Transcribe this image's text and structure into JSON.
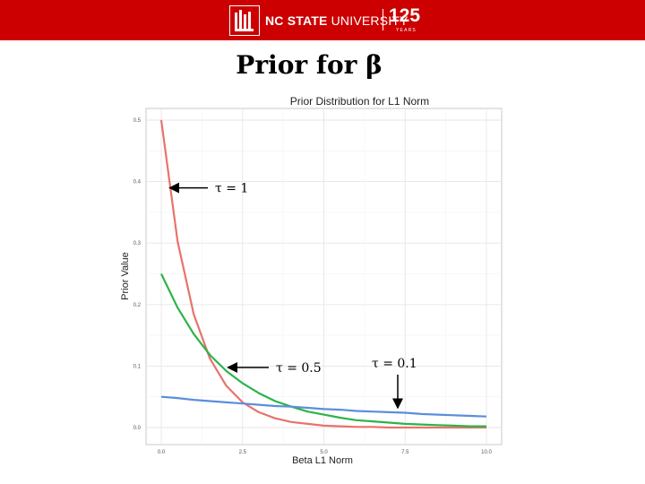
{
  "header": {
    "logo_name_bold": "NC STATE",
    "logo_name_regular": " UNIVERSITY",
    "logo_number": "125",
    "logo_years": "YEARS",
    "banner_color": "#cc0000"
  },
  "slide": {
    "title": "Prior for β"
  },
  "chart_data": {
    "type": "line",
    "title": "Prior Distribution for L1 Norm",
    "xlabel": "Beta L1 Norm",
    "ylabel": "Prior Value",
    "xlim": [
      0,
      10
    ],
    "ylim": [
      0,
      0.5
    ],
    "x_ticks": [
      "0.0",
      "2.5",
      "5.0",
      "7.5",
      "10.0"
    ],
    "y_ticks": [
      "0.0",
      "0.1",
      "0.2",
      "0.3",
      "0.4",
      "0.5"
    ],
    "grid": true,
    "x": [
      0,
      0.5,
      1,
      1.5,
      2,
      2.5,
      3,
      3.5,
      4,
      4.5,
      5,
      5.5,
      6,
      6.5,
      7,
      7.5,
      8,
      8.5,
      9,
      9.5,
      10
    ],
    "series": [
      {
        "color": "#e8736b",
        "values": [
          0.5,
          0.303,
          0.184,
          0.112,
          0.068,
          0.041,
          0.025,
          0.015,
          0.009,
          0.006,
          0.003,
          0.002,
          0.001,
          0.001,
          0.0,
          0.0,
          0.0,
          0.0,
          0.0,
          0.0,
          0.0
        ]
      },
      {
        "color": "#2db34a",
        "values": [
          0.25,
          0.195,
          0.152,
          0.118,
          0.092,
          0.072,
          0.056,
          0.043,
          0.034,
          0.026,
          0.021,
          0.016,
          0.012,
          0.01,
          0.008,
          0.006,
          0.005,
          0.004,
          0.003,
          0.002,
          0.002
        ]
      },
      {
        "color": "#5b8fd9",
        "values": [
          0.05,
          0.048,
          0.045,
          0.043,
          0.041,
          0.039,
          0.037,
          0.035,
          0.034,
          0.032,
          0.03,
          0.029,
          0.027,
          0.026,
          0.025,
          0.024,
          0.022,
          0.021,
          0.02,
          0.019,
          0.018
        ]
      }
    ],
    "annotations": [
      {
        "text": "τ = 1",
        "arrow_to": [
          0.1,
          0.4
        ]
      },
      {
        "text": "τ = 0.5",
        "arrow_to": [
          2.0,
          0.1
        ]
      },
      {
        "text": "τ = 0.1",
        "arrow_to": [
          7.3,
          0.025
        ]
      }
    ]
  }
}
